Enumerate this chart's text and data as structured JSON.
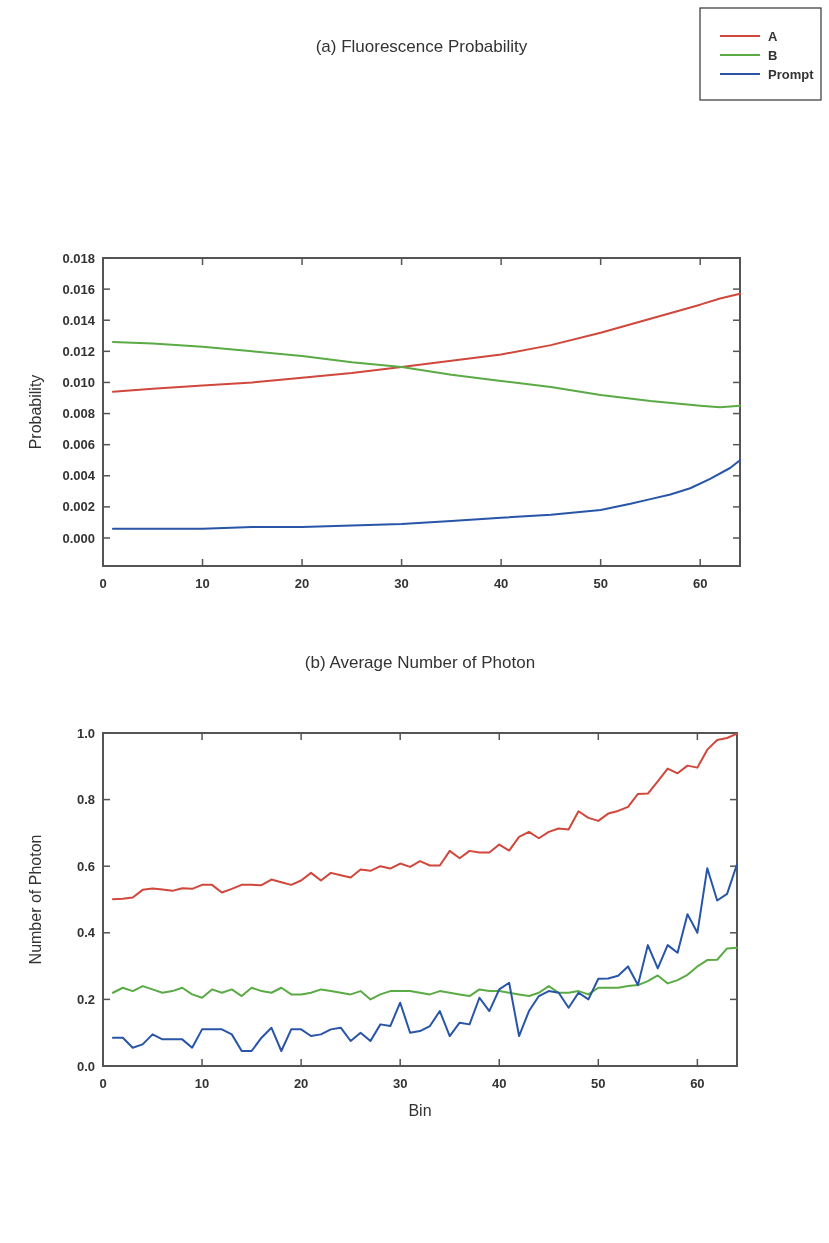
{
  "chart_data": [
    {
      "type": "line",
      "title": "(a) Fluorescence Probability",
      "ylabel": "Probability",
      "legend": "top right",
      "grid": false,
      "xlim": [
        0,
        64
      ],
      "xticks": [
        0,
        10,
        20,
        30,
        40,
        50,
        60
      ],
      "ylim": [
        -0.0018,
        0.018
      ],
      "yticks": [
        {
          "value": 0,
          "label": "0.000"
        },
        {
          "value": 0.002,
          "label": "0.002"
        },
        {
          "value": 0.004,
          "label": "0.004"
        },
        {
          "value": 0.006,
          "label": "0.006"
        },
        {
          "value": 0.008,
          "label": "0.008"
        },
        {
          "value": 0.01,
          "label": "0.010"
        },
        {
          "value": 0.012,
          "label": "0.012"
        },
        {
          "value": 0.014,
          "label": "0.014"
        },
        {
          "value": 0.016,
          "label": "0.016"
        },
        {
          "value": 0.018,
          "label": "0.018"
        }
      ],
      "series": [
        {
          "name": "A",
          "color": "#d0473c",
          "x": [
            1,
            5,
            10,
            15,
            20,
            25,
            30,
            35,
            40,
            45,
            50,
            55,
            60,
            62,
            64
          ],
          "values": [
            0.0094,
            0.0096,
            0.0098,
            0.01,
            0.0103,
            0.0106,
            0.011,
            0.0114,
            0.0118,
            0.0124,
            0.0132,
            0.0141,
            0.015,
            0.0154,
            0.0157
          ]
        },
        {
          "name": "B",
          "color": "#5aab45",
          "x": [
            1,
            5,
            10,
            15,
            20,
            25,
            30,
            35,
            40,
            45,
            50,
            55,
            60,
            62,
            64
          ],
          "values": [
            0.0126,
            0.0125,
            0.0123,
            0.012,
            0.0117,
            0.0113,
            0.011,
            0.0105,
            0.0101,
            0.0097,
            0.0092,
            0.0088,
            0.0085,
            0.0084,
            0.0085
          ]
        },
        {
          "name": "Prompt",
          "color": "#2855a8",
          "x": [
            1,
            5,
            10,
            15,
            20,
            25,
            30,
            35,
            40,
            45,
            50,
            53,
            55,
            57,
            59,
            61,
            63,
            64
          ],
          "values": [
            0.0006,
            0.0006,
            0.0006,
            0.0007,
            0.0007,
            0.0008,
            0.0009,
            0.0011,
            0.0013,
            0.0015,
            0.0018,
            0.0022,
            0.0025,
            0.0028,
            0.0032,
            0.0038,
            0.0045,
            0.005
          ]
        }
      ]
    },
    {
      "type": "line",
      "title": "(b) Average Number of Photon",
      "xlabel": "Bin",
      "ylabel": "Number of Photon",
      "grid": false,
      "xlim": [
        0,
        64
      ],
      "xticks": [
        0,
        10,
        20,
        30,
        40,
        50,
        60
      ],
      "ylim": [
        0,
        1
      ],
      "yticks": [
        {
          "value": 0,
          "label": "0.0"
        },
        {
          "value": 0.2,
          "label": "0.2"
        },
        {
          "value": 0.4,
          "label": "0.4"
        },
        {
          "value": 0.6,
          "label": "0.6"
        },
        {
          "value": 0.8,
          "label": "0.8"
        },
        {
          "value": 1,
          "label": "1.0"
        }
      ],
      "x": [
        1,
        2,
        3,
        4,
        5,
        6,
        7,
        8,
        9,
        10,
        11,
        12,
        13,
        14,
        15,
        16,
        17,
        18,
        19,
        20,
        21,
        22,
        23,
        24,
        25,
        26,
        27,
        28,
        29,
        30,
        31,
        32,
        33,
        34,
        35,
        36,
        37,
        38,
        39,
        40,
        41,
        42,
        43,
        44,
        45,
        46,
        47,
        48,
        49,
        50,
        51,
        52,
        53,
        54,
        55,
        56,
        57,
        58,
        59,
        60,
        61,
        62,
        63,
        64
      ],
      "series": [
        {
          "color": "#d0473c",
          "values": [
            0.501,
            0.502,
            0.506,
            0.529,
            0.533,
            0.53,
            0.526,
            0.534,
            0.532,
            0.544,
            0.544,
            0.521,
            0.532,
            0.544,
            0.544,
            0.543,
            0.56,
            0.552,
            0.544,
            0.557,
            0.58,
            0.557,
            0.58,
            0.573,
            0.566,
            0.59,
            0.586,
            0.6,
            0.593,
            0.608,
            0.598,
            0.615,
            0.602,
            0.602,
            0.646,
            0.624,
            0.646,
            0.641,
            0.641,
            0.665,
            0.647,
            0.688,
            0.703,
            0.684,
            0.703,
            0.713,
            0.71,
            0.765,
            0.745,
            0.736,
            0.758,
            0.766,
            0.778,
            0.817,
            0.818,
            0.855,
            0.893,
            0.879,
            0.902,
            0.896,
            0.95,
            0.979,
            0.985,
            0.998
          ]
        },
        {
          "color": "#5aab45",
          "values": [
            0.22,
            0.235,
            0.225,
            0.24,
            0.23,
            0.22,
            0.225,
            0.235,
            0.215,
            0.205,
            0.23,
            0.22,
            0.23,
            0.21,
            0.235,
            0.225,
            0.22,
            0.235,
            0.215,
            0.215,
            0.22,
            0.23,
            0.225,
            0.22,
            0.215,
            0.225,
            0.2,
            0.215,
            0.225,
            0.225,
            0.225,
            0.22,
            0.215,
            0.225,
            0.22,
            0.215,
            0.21,
            0.23,
            0.225,
            0.225,
            0.22,
            0.215,
            0.21,
            0.22,
            0.24,
            0.22,
            0.22,
            0.225,
            0.215,
            0.235,
            0.235,
            0.235,
            0.24,
            0.243,
            0.255,
            0.272,
            0.248,
            0.258,
            0.274,
            0.299,
            0.318,
            0.319,
            0.353,
            0.355
          ]
        },
        {
          "color": "#2855a8",
          "values": [
            0.085,
            0.085,
            0.055,
            0.065,
            0.095,
            0.08,
            0.08,
            0.08,
            0.055,
            0.11,
            0.11,
            0.11,
            0.095,
            0.045,
            0.045,
            0.085,
            0.115,
            0.045,
            0.11,
            0.11,
            0.09,
            0.095,
            0.11,
            0.115,
            0.075,
            0.1,
            0.075,
            0.125,
            0.12,
            0.19,
            0.1,
            0.105,
            0.12,
            0.165,
            0.09,
            0.13,
            0.125,
            0.205,
            0.165,
            0.23,
            0.25,
            0.09,
            0.165,
            0.21,
            0.225,
            0.22,
            0.175,
            0.22,
            0.2,
            0.262,
            0.263,
            0.271,
            0.299,
            0.243,
            0.363,
            0.293,
            0.363,
            0.34,
            0.456,
            0.4,
            0.594,
            0.497,
            0.517,
            0.606
          ]
        }
      ]
    }
  ]
}
